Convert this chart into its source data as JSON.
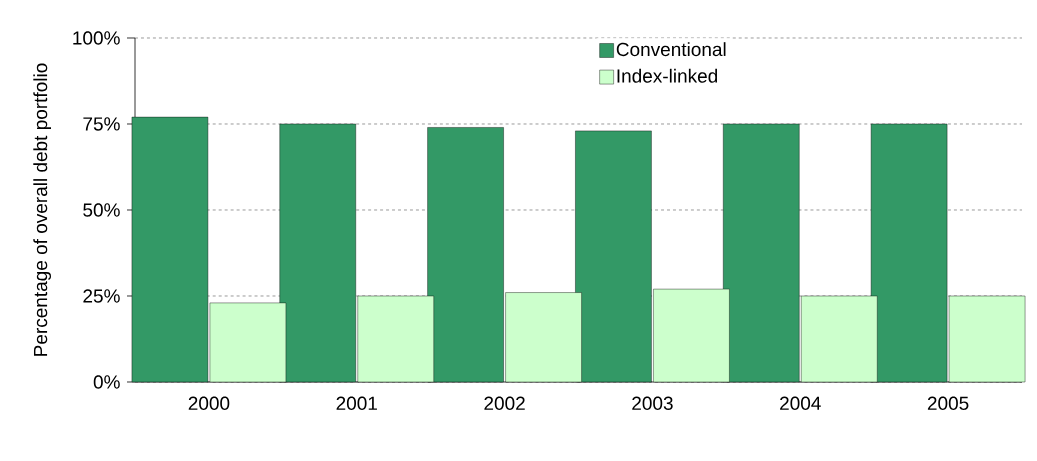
{
  "chart_data": {
    "type": "bar",
    "ylabel": "Percentage of overall debt portfolio",
    "categories": [
      "2000",
      "2001",
      "2002",
      "2003",
      "2004",
      "2005"
    ],
    "series": [
      {
        "name": "Conventional",
        "color": "#339966",
        "values": [
          77,
          75,
          74,
          73,
          75,
          75
        ]
      },
      {
        "name": "Index-linked",
        "color": "#ccffcc",
        "values": [
          23,
          25,
          26,
          27,
          25,
          25
        ]
      }
    ],
    "ylim": [
      0,
      100
    ],
    "yticks": [
      {
        "value": 0,
        "label": "0%"
      },
      {
        "value": 25,
        "label": "25%"
      },
      {
        "value": 50,
        "label": "50%"
      },
      {
        "value": 75,
        "label": "75%"
      },
      {
        "value": 100,
        "label": "100%"
      }
    ],
    "grid": "y",
    "legend": "top right"
  }
}
